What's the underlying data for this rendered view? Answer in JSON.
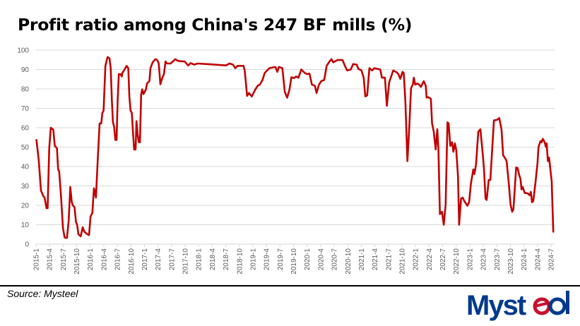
{
  "chart_data": {
    "type": "line",
    "title": "Profit ratio among China's 247 BF mills (%)",
    "xlabel": "",
    "ylabel": "",
    "ylim": [
      0,
      100
    ],
    "yticks": [
      0,
      10,
      20,
      30,
      40,
      50,
      60,
      70,
      80,
      90,
      100
    ],
    "xticks": [
      "2015-1",
      "2015-4",
      "2015-7",
      "2015-10",
      "2016-1",
      "2016-4",
      "2016-7",
      "2016-10",
      "2017-1",
      "2017-4",
      "2017-7",
      "2017-10",
      "2018-1",
      "2018-4",
      "2018-7",
      "2018-10",
      "2019-1",
      "2019-4",
      "2019-7",
      "2019-10",
      "2020-1",
      "2020-4",
      "2020-7",
      "2020-10",
      "2021-1",
      "2021-4",
      "2021-7",
      "2021-10",
      "2022-1",
      "2022-4",
      "2022-7",
      "2022-10",
      "2023-1",
      "2023-4",
      "2023-7",
      "2023-10",
      "2024-1",
      "2024-4",
      "2024-7"
    ],
    "grid": true,
    "line_color": "#c00000",
    "series": [
      {
        "points": [
          [
            "2015-01-04",
            53.7
          ],
          [
            "2015-01-19",
            43.4
          ],
          [
            "2015-02-04",
            27.6
          ],
          [
            "2015-02-20",
            24.7
          ],
          [
            "2015-02-28",
            24
          ],
          [
            "2015-03-11",
            18.5
          ],
          [
            "2015-03-18",
            18.5
          ],
          [
            "2015-03-29",
            49.5
          ],
          [
            "2015-04-09",
            60
          ],
          [
            "2015-04-26",
            59
          ],
          [
            "2015-05-06",
            50.6
          ],
          [
            "2015-05-20",
            49.5
          ],
          [
            "2015-05-28",
            38.5
          ],
          [
            "2015-06-05",
            37.4
          ],
          [
            "2015-06-18",
            24
          ],
          [
            "2015-06-30",
            8.3
          ],
          [
            "2015-07-11",
            3.4
          ],
          [
            "2015-07-27",
            3.2
          ],
          [
            "2015-08-08",
            12
          ],
          [
            "2015-08-19",
            29.5
          ],
          [
            "2015-08-29",
            21.6
          ],
          [
            "2015-09-06",
            20
          ],
          [
            "2015-09-17",
            19
          ],
          [
            "2015-09-27",
            11.3
          ],
          [
            "2015-10-04",
            10
          ],
          [
            "2015-10-12",
            5.2
          ],
          [
            "2015-10-28",
            4
          ],
          [
            "2015-11-11",
            8.7
          ],
          [
            "2015-11-21",
            6.5
          ],
          [
            "2015-12-10",
            5.2
          ],
          [
            "2015-12-23",
            4.7
          ],
          [
            "2016-01-03",
            14.3
          ],
          [
            "2016-01-15",
            16
          ],
          [
            "2016-01-26",
            28.8
          ],
          [
            "2016-02-09",
            24
          ],
          [
            "2016-02-22",
            44.6
          ],
          [
            "2016-03-03",
            62.2
          ],
          [
            "2016-03-14",
            62.2
          ],
          [
            "2016-03-22",
            67.6
          ],
          [
            "2016-03-30",
            68.8
          ],
          [
            "2016-04-12",
            91.9
          ],
          [
            "2016-04-26",
            96.4
          ],
          [
            "2016-05-09",
            95.8
          ],
          [
            "2016-05-17",
            90.7
          ],
          [
            "2016-05-25",
            73.7
          ],
          [
            "2016-06-02",
            62.8
          ],
          [
            "2016-06-10",
            60.4
          ],
          [
            "2016-06-18",
            53.7
          ],
          [
            "2016-06-26",
            53.7
          ],
          [
            "2016-07-03",
            73.7
          ],
          [
            "2016-07-11",
            87.6
          ],
          [
            "2016-07-23",
            87.6
          ],
          [
            "2016-07-31",
            86.4
          ],
          [
            "2016-08-04",
            88.2
          ],
          [
            "2016-08-17",
            89.7
          ],
          [
            "2016-09-02",
            91.9
          ],
          [
            "2016-09-14",
            90.7
          ],
          [
            "2016-09-21",
            76.1
          ],
          [
            "2016-09-29",
            68.8
          ],
          [
            "2016-10-07",
            67.6
          ],
          [
            "2016-10-15",
            57.9
          ],
          [
            "2016-10-23",
            48.8
          ],
          [
            "2016-11-02",
            48.8
          ],
          [
            "2016-11-08",
            63.4
          ],
          [
            "2016-11-16",
            56.7
          ],
          [
            "2016-11-24",
            52.5
          ],
          [
            "2016-12-01",
            52.5
          ],
          [
            "2016-12-09",
            77.3
          ],
          [
            "2016-12-17",
            79.8
          ],
          [
            "2016-12-25",
            77.3
          ],
          [
            "2017-01-11",
            79.8
          ],
          [
            "2017-01-18",
            82.8
          ],
          [
            "2017-02-04",
            84
          ],
          [
            "2017-02-11",
            90.7
          ],
          [
            "2017-02-26",
            93.7
          ],
          [
            "2017-03-13",
            95.3
          ],
          [
            "2017-03-26",
            94.9
          ],
          [
            "2017-04-06",
            93.1
          ],
          [
            "2017-04-17",
            82.4
          ],
          [
            "2017-04-30",
            85.8
          ],
          [
            "2017-05-10",
            87.6
          ],
          [
            "2017-05-21",
            94.1
          ],
          [
            "2017-06-01",
            93.1
          ],
          [
            "2017-06-25",
            93.1
          ],
          [
            "2017-07-26",
            95.3
          ],
          [
            "2017-08-12",
            94.5
          ],
          [
            "2017-08-28",
            94.3
          ],
          [
            "2017-09-29",
            94.1
          ],
          [
            "2017-10-22",
            92.1
          ],
          [
            "2017-11-08",
            93.3
          ],
          [
            "2017-12-01",
            92.5
          ],
          [
            "2017-12-25",
            93.1
          ],
          [
            "2018-03-13",
            92.7
          ],
          [
            "2018-07-02",
            92.1
          ],
          [
            "2018-07-26",
            93.1
          ],
          [
            "2018-08-19",
            92.5
          ],
          [
            "2018-09-04",
            90.7
          ],
          [
            "2018-09-20",
            91.9
          ],
          [
            "2018-10-29",
            91.9
          ],
          [
            "2018-11-07",
            89.5
          ],
          [
            "2018-11-23",
            76.4
          ],
          [
            "2018-12-05",
            77.9
          ],
          [
            "2018-12-24",
            76.1
          ],
          [
            "2019-01-18",
            79.8
          ],
          [
            "2019-02-03",
            81.6
          ],
          [
            "2019-02-18",
            82.2
          ],
          [
            "2019-03-05",
            84.6
          ],
          [
            "2019-03-20",
            88.2
          ],
          [
            "2019-04-21",
            90.7
          ],
          [
            "2019-06-01",
            91.3
          ],
          [
            "2019-06-13",
            88.8
          ],
          [
            "2019-06-24",
            91.3
          ],
          [
            "2019-07-17",
            90.7
          ],
          [
            "2019-08-03",
            78.5
          ],
          [
            "2019-08-19",
            75.5
          ],
          [
            "2019-09-04",
            79.8
          ],
          [
            "2019-09-17",
            86
          ],
          [
            "2019-10-05",
            85.6
          ],
          [
            "2019-10-18",
            86.4
          ],
          [
            "2019-11-04",
            85.8
          ],
          [
            "2019-11-23",
            90
          ],
          [
            "2019-12-16",
            88.2
          ],
          [
            "2020-01-02",
            87.6
          ],
          [
            "2020-01-17",
            87.9
          ],
          [
            "2020-02-03",
            82.2
          ],
          [
            "2020-02-23",
            81.6
          ],
          [
            "2020-03-04",
            77.9
          ],
          [
            "2020-03-20",
            82.2
          ],
          [
            "2020-04-05",
            84
          ],
          [
            "2020-04-25",
            84.6
          ],
          [
            "2020-05-11",
            91.9
          ],
          [
            "2020-06-01",
            94.3
          ],
          [
            "2020-06-13",
            95.3
          ],
          [
            "2020-06-24",
            93.7
          ],
          [
            "2020-07-25",
            94.9
          ],
          [
            "2020-08-27",
            94.9
          ],
          [
            "2020-09-12",
            91.9
          ],
          [
            "2020-09-28",
            89.5
          ],
          [
            "2020-10-21",
            90
          ],
          [
            "2020-11-07",
            92.8
          ],
          [
            "2020-12-01",
            92.5
          ],
          [
            "2020-12-11",
            90.4
          ],
          [
            "2021-01-02",
            89.5
          ],
          [
            "2021-01-17",
            85.8
          ],
          [
            "2021-01-28",
            76.1
          ],
          [
            "2021-02-10",
            76.7
          ],
          [
            "2021-02-25",
            90.7
          ],
          [
            "2021-03-13",
            89.5
          ],
          [
            "2021-03-28",
            90.7
          ],
          [
            "2021-05-07",
            90
          ],
          [
            "2021-05-18",
            85.8
          ],
          [
            "2021-06-08",
            85.8
          ],
          [
            "2021-06-21",
            71.3
          ],
          [
            "2021-07-06",
            83.4
          ],
          [
            "2021-08-03",
            89.5
          ],
          [
            "2021-08-27",
            88.5
          ],
          [
            "2021-09-07",
            87.6
          ],
          [
            "2021-09-20",
            85.2
          ],
          [
            "2021-10-05",
            88.8
          ],
          [
            "2021-10-13",
            88.2
          ],
          [
            "2021-10-24",
            73.7
          ],
          [
            "2021-11-07",
            42.8
          ],
          [
            "2021-11-19",
            59.2
          ],
          [
            "2021-12-01",
            80.4
          ],
          [
            "2021-12-13",
            82.2
          ],
          [
            "2021-12-20",
            85.8
          ],
          [
            "2021-12-29",
            82.2
          ],
          [
            "2022-01-14",
            82.8
          ],
          [
            "2022-01-25",
            82.2
          ],
          [
            "2022-02-07",
            81
          ],
          [
            "2022-02-26",
            84
          ],
          [
            "2022-03-09",
            81.6
          ],
          [
            "2022-03-15",
            75.5
          ],
          [
            "2022-03-25",
            75.8
          ],
          [
            "2022-04-13",
            74.9
          ],
          [
            "2022-04-21",
            62.2
          ],
          [
            "2022-05-02",
            57.9
          ],
          [
            "2022-05-15",
            48.8
          ],
          [
            "2022-05-26",
            59.2
          ],
          [
            "2022-06-03",
            48.8
          ],
          [
            "2022-06-13",
            15.5
          ],
          [
            "2022-06-27",
            16.7
          ],
          [
            "2022-07-09",
            10
          ],
          [
            "2022-07-21",
            20.4
          ],
          [
            "2022-08-03",
            62.8
          ],
          [
            "2022-08-11",
            62.2
          ],
          [
            "2022-08-22",
            50.7
          ],
          [
            "2022-09-04",
            52.5
          ],
          [
            "2022-09-12",
            47.6
          ],
          [
            "2022-09-23",
            51.9
          ],
          [
            "2022-10-02",
            48.2
          ],
          [
            "2022-10-13",
            34.9
          ],
          [
            "2022-10-21",
            10
          ],
          [
            "2022-11-03",
            23.4
          ],
          [
            "2022-11-14",
            24
          ],
          [
            "2022-11-25",
            22.2
          ],
          [
            "2022-12-16",
            19.8
          ],
          [
            "2022-12-27",
            21.6
          ],
          [
            "2023-01-09",
            31.3
          ],
          [
            "2023-01-25",
            38.5
          ],
          [
            "2023-02-02",
            36.1
          ],
          [
            "2023-02-13",
            41
          ],
          [
            "2023-02-28",
            57.9
          ],
          [
            "2023-03-12",
            59.2
          ],
          [
            "2023-03-27",
            47
          ],
          [
            "2023-04-05",
            39.7
          ],
          [
            "2023-04-16",
            23.4
          ],
          [
            "2023-04-24",
            22.8
          ],
          [
            "2023-05-07",
            33.1
          ],
          [
            "2023-05-18",
            33.1
          ],
          [
            "2023-05-31",
            49.5
          ],
          [
            "2023-06-12",
            63.8
          ],
          [
            "2023-07-01",
            64
          ],
          [
            "2023-07-17",
            65
          ],
          [
            "2023-08-02",
            59.2
          ],
          [
            "2023-08-13",
            45.8
          ],
          [
            "2023-08-26",
            44.4
          ],
          [
            "2023-09-06",
            42.8
          ],
          [
            "2023-09-19",
            32.5
          ],
          [
            "2023-10-02",
            20.4
          ],
          [
            "2023-10-13",
            16.7
          ],
          [
            "2023-10-21",
            17.9
          ],
          [
            "2023-10-28",
            25.2
          ],
          [
            "2023-11-09",
            39.5
          ],
          [
            "2023-11-19",
            39.2
          ],
          [
            "2023-11-30",
            35.5
          ],
          [
            "2023-12-08",
            33.7
          ],
          [
            "2023-12-15",
            28.2
          ],
          [
            "2023-12-23",
            29.5
          ],
          [
            "2024-01-06",
            26.4
          ],
          [
            "2024-01-25",
            26.2
          ],
          [
            "2024-02-09",
            25.2
          ],
          [
            "2024-02-17",
            27
          ],
          [
            "2024-02-25",
            21.6
          ],
          [
            "2024-03-03",
            22.2
          ],
          [
            "2024-03-19",
            32.5
          ],
          [
            "2024-03-31",
            41.6
          ],
          [
            "2024-04-08",
            50.1
          ],
          [
            "2024-04-21",
            53.1
          ],
          [
            "2024-04-29",
            52.5
          ],
          [
            "2024-05-06",
            54.3
          ],
          [
            "2024-05-19",
            52.5
          ],
          [
            "2024-05-27",
            50.1
          ],
          [
            "2024-06-02",
            51.9
          ],
          [
            "2024-06-10",
            42.8
          ],
          [
            "2024-06-18",
            44.6
          ],
          [
            "2024-07-05",
            32.5
          ],
          [
            "2024-07-16",
            6.4
          ]
        ]
      }
    ]
  },
  "footer": {
    "source": "Source: Mysteel",
    "logo_text": "Mysteel",
    "logo_color": "#003a8c",
    "logo_accent": "#c8102e"
  }
}
